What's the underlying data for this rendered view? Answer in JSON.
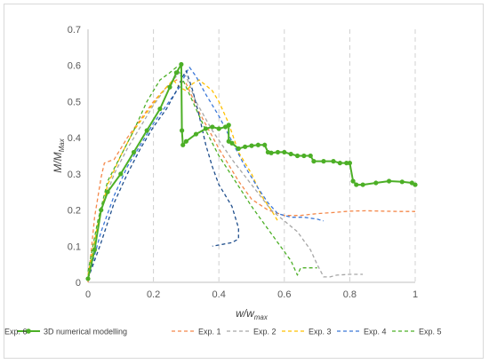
{
  "chart_data": {
    "type": "line",
    "title": "",
    "xlabel": "w/w",
    "xlabel_sub": "max",
    "ylabel": "M/M",
    "ylabel_sub": "Max",
    "xlim": [
      0,
      1
    ],
    "ylim": [
      0,
      0.7
    ],
    "xticks": [
      "0",
      "0.2",
      "0.4",
      "0.6",
      "0.8",
      "1"
    ],
    "xtick_values": [
      0,
      0.2,
      0.4,
      0.6,
      0.8,
      1.0
    ],
    "yticks": [
      "0",
      "0.1",
      "0.2",
      "0.3",
      "0.4",
      "0.5",
      "0.6",
      "0.7"
    ],
    "ytick_values": [
      0,
      0.1,
      0.2,
      0.3,
      0.4,
      0.5,
      0.6,
      0.7
    ],
    "grid": "vertical dashed",
    "legend_position": "bottom",
    "series": [
      {
        "name": "3D numerical modelling",
        "color": "#4caf26",
        "dash": "solid",
        "marker": true,
        "points": [
          [
            0,
            0.01
          ],
          [
            0.02,
            0.09
          ],
          [
            0.04,
            0.2
          ],
          [
            0.06,
            0.25
          ],
          [
            0.1,
            0.3
          ],
          [
            0.14,
            0.36
          ],
          [
            0.18,
            0.42
          ],
          [
            0.22,
            0.48
          ],
          [
            0.25,
            0.54
          ],
          [
            0.27,
            0.58
          ],
          [
            0.285,
            0.603
          ],
          [
            0.287,
            0.42
          ],
          [
            0.29,
            0.38
          ],
          [
            0.3,
            0.39
          ],
          [
            0.33,
            0.41
          ],
          [
            0.36,
            0.425
          ],
          [
            0.38,
            0.43
          ],
          [
            0.4,
            0.425
          ],
          [
            0.42,
            0.43
          ],
          [
            0.43,
            0.435
          ],
          [
            0.43,
            0.39
          ],
          [
            0.44,
            0.385
          ],
          [
            0.46,
            0.37
          ],
          [
            0.48,
            0.375
          ],
          [
            0.5,
            0.378
          ],
          [
            0.52,
            0.38
          ],
          [
            0.54,
            0.38
          ],
          [
            0.55,
            0.36
          ],
          [
            0.56,
            0.358
          ],
          [
            0.58,
            0.36
          ],
          [
            0.6,
            0.36
          ],
          [
            0.62,
            0.355
          ],
          [
            0.64,
            0.35
          ],
          [
            0.66,
            0.35
          ],
          [
            0.68,
            0.35
          ],
          [
            0.69,
            0.335
          ],
          [
            0.72,
            0.335
          ],
          [
            0.75,
            0.335
          ],
          [
            0.77,
            0.33
          ],
          [
            0.79,
            0.33
          ],
          [
            0.8,
            0.33
          ],
          [
            0.81,
            0.28
          ],
          [
            0.82,
            0.27
          ],
          [
            0.84,
            0.27
          ],
          [
            0.88,
            0.275
          ],
          [
            0.92,
            0.28
          ],
          [
            0.96,
            0.278
          ],
          [
            0.99,
            0.275
          ],
          [
            1.0,
            0.27
          ]
        ]
      },
      {
        "name": "Exp. 1",
        "color": "#f4884a",
        "dash": "dashed",
        "points": [
          [
            0,
            0.0
          ],
          [
            0.02,
            0.18
          ],
          [
            0.04,
            0.29
          ],
          [
            0.05,
            0.33
          ],
          [
            0.08,
            0.34
          ],
          [
            0.12,
            0.4
          ],
          [
            0.16,
            0.45
          ],
          [
            0.2,
            0.5
          ],
          [
            0.24,
            0.54
          ],
          [
            0.27,
            0.56
          ],
          [
            0.3,
            0.55
          ],
          [
            0.34,
            0.47
          ],
          [
            0.4,
            0.37
          ],
          [
            0.46,
            0.28
          ],
          [
            0.5,
            0.23
          ],
          [
            0.55,
            0.2
          ],
          [
            0.6,
            0.185
          ],
          [
            0.65,
            0.185
          ],
          [
            0.7,
            0.19
          ],
          [
            0.75,
            0.193
          ],
          [
            0.8,
            0.197
          ],
          [
            0.85,
            0.198
          ],
          [
            0.9,
            0.197
          ],
          [
            0.95,
            0.196
          ],
          [
            1.0,
            0.196
          ]
        ]
      },
      {
        "name": "Exp. 2",
        "color": "#a6a6a6",
        "dash": "dashed",
        "points": [
          [
            0,
            0.02
          ],
          [
            0.04,
            0.2
          ],
          [
            0.08,
            0.3
          ],
          [
            0.12,
            0.37
          ],
          [
            0.16,
            0.43
          ],
          [
            0.2,
            0.49
          ],
          [
            0.24,
            0.54
          ],
          [
            0.28,
            0.58
          ],
          [
            0.3,
            0.57
          ],
          [
            0.33,
            0.5
          ],
          [
            0.38,
            0.42
          ],
          [
            0.44,
            0.34
          ],
          [
            0.5,
            0.27
          ],
          [
            0.56,
            0.2
          ],
          [
            0.6,
            0.17
          ],
          [
            0.64,
            0.14
          ],
          [
            0.68,
            0.09
          ],
          [
            0.7,
            0.05
          ],
          [
            0.72,
            0.015
          ],
          [
            0.74,
            0.015
          ],
          [
            0.76,
            0.02
          ],
          [
            0.8,
            0.022
          ],
          [
            0.84,
            0.022
          ]
        ]
      },
      {
        "name": "Exp. 3",
        "color": "#ffc000",
        "dash": "dashed",
        "points": [
          [
            0,
            0.02
          ],
          [
            0.03,
            0.16
          ],
          [
            0.06,
            0.27
          ],
          [
            0.1,
            0.35
          ],
          [
            0.14,
            0.42
          ],
          [
            0.18,
            0.47
          ],
          [
            0.22,
            0.52
          ],
          [
            0.26,
            0.56
          ],
          [
            0.28,
            0.54
          ],
          [
            0.3,
            0.53
          ],
          [
            0.32,
            0.55
          ],
          [
            0.34,
            0.56
          ],
          [
            0.36,
            0.545
          ],
          [
            0.38,
            0.53
          ],
          [
            0.4,
            0.5
          ],
          [
            0.43,
            0.44
          ],
          [
            0.46,
            0.36
          ],
          [
            0.5,
            0.3
          ],
          [
            0.53,
            0.24
          ],
          [
            0.56,
            0.2
          ],
          [
            0.58,
            0.17
          ]
        ]
      },
      {
        "name": "Exp. 4",
        "color": "#3c78d8",
        "dash": "dashed",
        "points": [
          [
            0,
            0.01
          ],
          [
            0.04,
            0.14
          ],
          [
            0.08,
            0.24
          ],
          [
            0.12,
            0.32
          ],
          [
            0.16,
            0.38
          ],
          [
            0.2,
            0.44
          ],
          [
            0.24,
            0.49
          ],
          [
            0.28,
            0.54
          ],
          [
            0.3,
            0.58
          ],
          [
            0.31,
            0.595
          ],
          [
            0.33,
            0.57
          ],
          [
            0.36,
            0.52
          ],
          [
            0.4,
            0.46
          ],
          [
            0.44,
            0.39
          ],
          [
            0.48,
            0.32
          ],
          [
            0.52,
            0.26
          ],
          [
            0.55,
            0.22
          ],
          [
            0.58,
            0.19
          ],
          [
            0.62,
            0.18
          ],
          [
            0.66,
            0.18
          ],
          [
            0.7,
            0.175
          ],
          [
            0.72,
            0.17
          ]
        ]
      },
      {
        "name": "Exp. 5",
        "color": "#4caf26",
        "dash": "dashed",
        "points": [
          [
            0,
            0.03
          ],
          [
            0.03,
            0.17
          ],
          [
            0.06,
            0.28
          ],
          [
            0.1,
            0.35
          ],
          [
            0.14,
            0.42
          ],
          [
            0.18,
            0.5
          ],
          [
            0.22,
            0.56
          ],
          [
            0.25,
            0.58
          ],
          [
            0.27,
            0.595
          ],
          [
            0.29,
            0.56
          ],
          [
            0.32,
            0.5
          ],
          [
            0.36,
            0.42
          ],
          [
            0.4,
            0.35
          ],
          [
            0.45,
            0.28
          ],
          [
            0.5,
            0.21
          ],
          [
            0.54,
            0.16
          ],
          [
            0.58,
            0.11
          ],
          [
            0.62,
            0.06
          ],
          [
            0.64,
            0.02
          ],
          [
            0.65,
            0.04
          ],
          [
            0.68,
            0.04
          ],
          [
            0.7,
            0.04
          ]
        ]
      },
      {
        "name": "Exp. 6",
        "color": "#1f4e8c",
        "dash": "dashed",
        "points": [
          [
            0,
            0.01
          ],
          [
            0.04,
            0.11
          ],
          [
            0.08,
            0.22
          ],
          [
            0.12,
            0.3
          ],
          [
            0.16,
            0.37
          ],
          [
            0.2,
            0.43
          ],
          [
            0.24,
            0.48
          ],
          [
            0.27,
            0.53
          ],
          [
            0.29,
            0.57
          ],
          [
            0.3,
            0.585
          ],
          [
            0.32,
            0.53
          ],
          [
            0.34,
            0.46
          ],
          [
            0.36,
            0.38
          ],
          [
            0.38,
            0.32
          ],
          [
            0.4,
            0.27
          ],
          [
            0.42,
            0.24
          ],
          [
            0.44,
            0.21
          ],
          [
            0.45,
            0.18
          ],
          [
            0.46,
            0.15
          ],
          [
            0.46,
            0.12
          ],
          [
            0.44,
            0.11
          ],
          [
            0.41,
            0.105
          ],
          [
            0.38,
            0.1
          ]
        ]
      }
    ]
  }
}
